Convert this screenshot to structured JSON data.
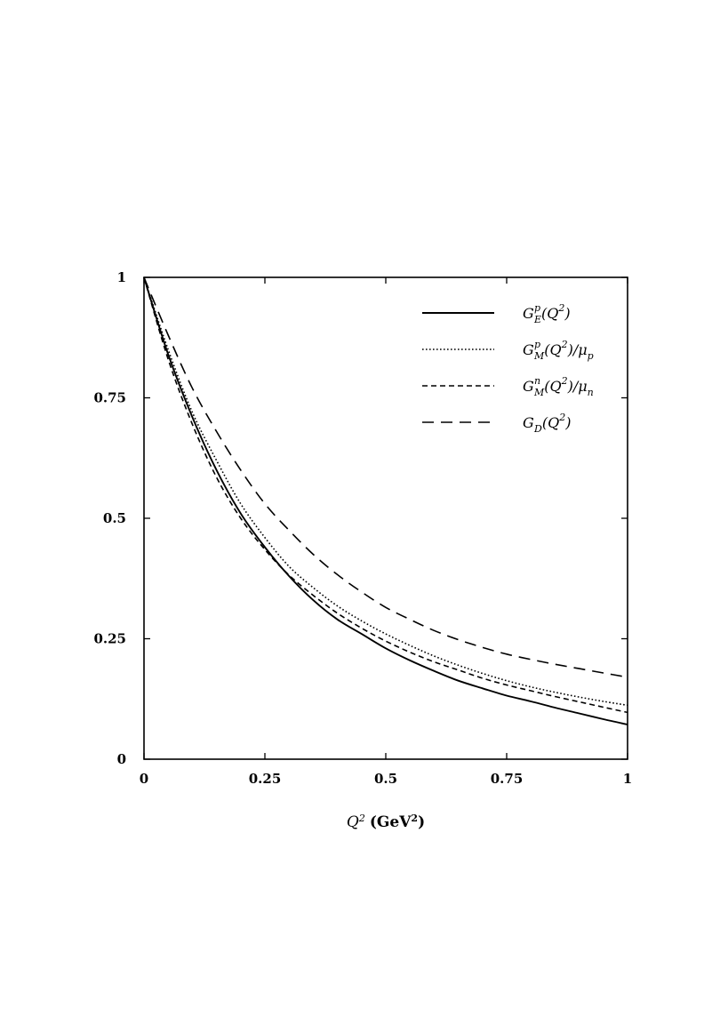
{
  "chart_data": {
    "type": "line",
    "xlabel": {
      "base": "Q",
      "sup": "2",
      "unit_open": "(GeV",
      "unit_sup": "2",
      "unit_close": ")"
    },
    "ylabel": "",
    "xlim": [
      0,
      1
    ],
    "ylim": [
      0,
      1
    ],
    "x_ticks": [
      0,
      0.25,
      0.5,
      0.75,
      1
    ],
    "y_ticks": [
      0,
      0.25,
      0.5,
      0.75,
      1
    ],
    "x_tick_labels": [
      "0",
      "0.25",
      "0.5",
      "0.75",
      "1"
    ],
    "y_tick_labels": [
      "0",
      "0.25",
      "0.5",
      "0.75",
      "1"
    ],
    "grid": false,
    "legend_position": "top-right",
    "x": [
      0,
      0.05,
      0.1,
      0.15,
      0.2,
      0.25,
      0.3,
      0.35,
      0.4,
      0.45,
      0.5,
      0.55,
      0.6,
      0.65,
      0.7,
      0.75,
      0.8,
      0.85,
      0.9,
      0.95,
      1
    ],
    "series": [
      {
        "key": "gep",
        "name": {
          "base": "G",
          "sup": "p",
          "sub": "E",
          "tail": "(Q",
          "tail_sup": "2",
          "tail_end": ")"
        },
        "style": "solid",
        "values": [
          1.0,
          0.84,
          0.71,
          0.6,
          0.51,
          0.44,
          0.38,
          0.33,
          0.29,
          0.26,
          0.23,
          0.205,
          0.183,
          0.163,
          0.147,
          0.132,
          0.12,
          0.107,
          0.095,
          0.083,
          0.072
        ]
      },
      {
        "key": "gmp",
        "name": {
          "base": "G",
          "sup": "p",
          "sub": "M",
          "tail": "(Q",
          "tail_sup": "2",
          "tail_end": ")/μ",
          "tail_sub": "p"
        },
        "style": "dotted",
        "values": [
          1.0,
          0.85,
          0.72,
          0.62,
          0.53,
          0.46,
          0.4,
          0.356,
          0.318,
          0.287,
          0.26,
          0.236,
          0.214,
          0.195,
          0.178,
          0.163,
          0.15,
          0.139,
          0.129,
          0.12,
          0.112
        ]
      },
      {
        "key": "gmn",
        "name": {
          "base": "G",
          "sup": "n",
          "sub": "M",
          "tail": "(Q",
          "tail_sup": "2",
          "tail_end": ")/μ",
          "tail_sub": "n"
        },
        "style": "short-dash",
        "values": [
          1.0,
          0.83,
          0.695,
          0.585,
          0.5,
          0.435,
          0.382,
          0.34,
          0.303,
          0.272,
          0.245,
          0.222,
          0.202,
          0.185,
          0.168,
          0.154,
          0.142,
          0.13,
          0.119,
          0.108,
          0.097
        ]
      },
      {
        "key": "gd",
        "name": {
          "base": "G",
          "sub": "D",
          "tail": "(Q",
          "tail_sup": "2",
          "tail_end": ")"
        },
        "style": "long-dash",
        "values": [
          1.0,
          0.88,
          0.77,
          0.68,
          0.6,
          0.53,
          0.475,
          0.425,
          0.383,
          0.347,
          0.315,
          0.29,
          0.267,
          0.248,
          0.232,
          0.218,
          0.207,
          0.197,
          0.188,
          0.179,
          0.17
        ]
      }
    ]
  }
}
